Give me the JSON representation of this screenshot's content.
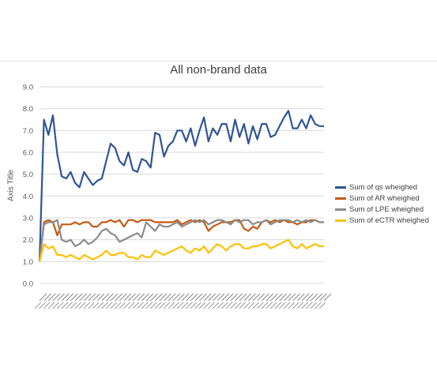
{
  "chart_data": {
    "type": "line",
    "title": "All non-brand data",
    "xlabel": "",
    "ylabel": "Axis Title",
    "ylim": [
      0,
      9
    ],
    "yticks": [
      "0.0",
      "1.0",
      "2.0",
      "3.0",
      "4.0",
      "5.0",
      "6.0",
      "7.0",
      "8.0",
      "9.0"
    ],
    "grid": true,
    "legend_position": "right",
    "x_tick_labels_legible": false,
    "series": [
      {
        "name": "Sum of qs wheighed",
        "color": "#2f5597",
        "values": [
          1.0,
          7.5,
          6.8,
          7.7,
          5.9,
          4.9,
          4.8,
          5.1,
          4.6,
          4.4,
          5.1,
          4.8,
          4.5,
          4.7,
          4.8,
          5.6,
          6.4,
          6.2,
          5.6,
          5.4,
          6.0,
          5.2,
          5.1,
          5.7,
          5.6,
          5.3,
          6.9,
          6.8,
          5.8,
          6.3,
          6.5,
          7.0,
          7.0,
          6.5,
          7.1,
          6.3,
          7.0,
          7.6,
          6.5,
          7.1,
          6.8,
          7.3,
          7.3,
          6.5,
          7.5,
          6.7,
          7.3,
          6.4,
          7.2,
          6.6,
          7.3,
          7.3,
          6.7,
          6.8,
          7.2,
          7.6,
          7.9,
          7.1,
          7.1,
          7.5,
          7.1,
          7.7,
          7.3,
          7.2,
          7.2
        ]
      },
      {
        "name": "Sum of AR wheighed",
        "color": "#c55a11",
        "values": [
          1.0,
          2.8,
          2.9,
          2.8,
          2.2,
          2.7,
          2.7,
          2.7,
          2.8,
          2.7,
          2.8,
          2.8,
          2.6,
          2.6,
          2.8,
          2.8,
          2.9,
          2.8,
          2.9,
          2.6,
          2.9,
          2.9,
          2.8,
          2.9,
          2.9,
          2.9,
          2.8,
          2.8,
          2.8,
          2.8,
          2.8,
          2.9,
          2.7,
          2.8,
          2.9,
          2.8,
          2.9,
          2.8,
          2.4,
          2.6,
          2.7,
          2.8,
          2.8,
          2.8,
          2.9,
          2.9,
          2.5,
          2.4,
          2.6,
          2.5,
          2.8,
          2.9,
          2.8,
          2.9,
          2.8,
          2.9,
          2.8,
          2.8,
          2.7,
          2.8,
          2.8,
          2.9,
          2.9,
          2.8,
          2.8
        ]
      },
      {
        "name": "Sum of LPE wheighed",
        "color": "#8c8c8c",
        "values": [
          1.0,
          2.7,
          2.8,
          2.8,
          2.9,
          2.0,
          1.9,
          2.0,
          1.7,
          1.8,
          2.0,
          1.8,
          1.9,
          2.1,
          2.4,
          2.5,
          2.3,
          2.2,
          1.9,
          2.0,
          2.1,
          2.2,
          2.3,
          2.1,
          2.8,
          2.6,
          2.4,
          2.7,
          2.6,
          2.6,
          2.7,
          2.8,
          2.6,
          2.7,
          2.8,
          2.9,
          2.8,
          2.9,
          2.7,
          2.8,
          2.9,
          2.9,
          2.8,
          2.7,
          2.9,
          2.8,
          2.9,
          2.9,
          2.7,
          2.8,
          2.8,
          2.9,
          2.7,
          2.8,
          2.9,
          2.9,
          2.9,
          2.8,
          2.9,
          2.8,
          2.9,
          2.8,
          2.9,
          2.8,
          2.8
        ]
      },
      {
        "name": "Sum of eCTR wheighed",
        "color": "#ffc000",
        "values": [
          1.0,
          1.8,
          1.6,
          1.7,
          1.3,
          1.3,
          1.2,
          1.3,
          1.2,
          1.1,
          1.3,
          1.2,
          1.1,
          1.2,
          1.3,
          1.5,
          1.3,
          1.3,
          1.4,
          1.4,
          1.2,
          1.2,
          1.1,
          1.3,
          1.2,
          1.2,
          1.5,
          1.4,
          1.3,
          1.4,
          1.5,
          1.6,
          1.7,
          1.5,
          1.4,
          1.6,
          1.5,
          1.7,
          1.4,
          1.6,
          1.8,
          1.7,
          1.5,
          1.7,
          1.8,
          1.8,
          1.6,
          1.6,
          1.7,
          1.7,
          1.8,
          1.8,
          1.6,
          1.7,
          1.8,
          1.9,
          2.0,
          1.7,
          1.6,
          1.8,
          1.6,
          1.7,
          1.8,
          1.7,
          1.7
        ]
      }
    ]
  }
}
